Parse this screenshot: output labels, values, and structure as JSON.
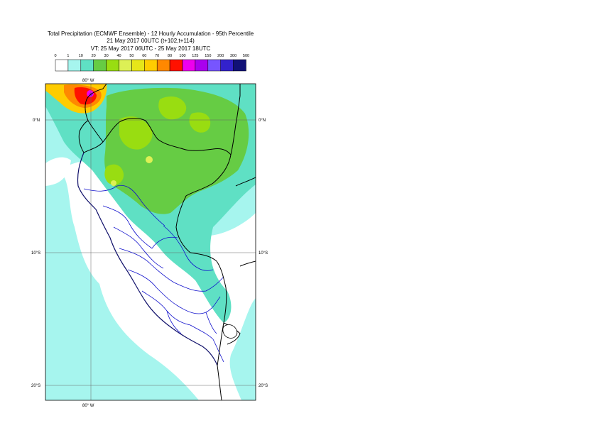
{
  "header": {
    "title": "Total Precipitation (ECMWF Ensemble) - 12 Hourly Accumulation - 95th Percentile",
    "run": "21 May 2017 00UTC (t+102,t+114)",
    "valid": "VT: 25 May 2017 06UTC - 25 May 2017 18UTC"
  },
  "legend": {
    "thresholds": [
      "0",
      "1",
      "10",
      "20",
      "30",
      "40",
      "50",
      "60",
      "70",
      "80",
      "100",
      "125",
      "150",
      "200",
      "300",
      "500"
    ],
    "colors": [
      "#ffffff",
      "#a6f5ee",
      "#5fe0c4",
      "#66cc44",
      "#99dd11",
      "#ddf055",
      "#e6e619",
      "#ffcc00",
      "#ff8800",
      "#ff1100",
      "#ee00ee",
      "#aa00ee",
      "#7755ff",
      "#3322cc",
      "#111177"
    ]
  },
  "map": {
    "lon_labels": [
      "80° W",
      "80° W"
    ],
    "lat_labels": {
      "eq_left": "0°N",
      "eq_right": "0°N",
      "s10_left": "10°S",
      "s10_right": "10°S",
      "s20_left": "20°S",
      "s20_right": "20°S"
    }
  }
}
